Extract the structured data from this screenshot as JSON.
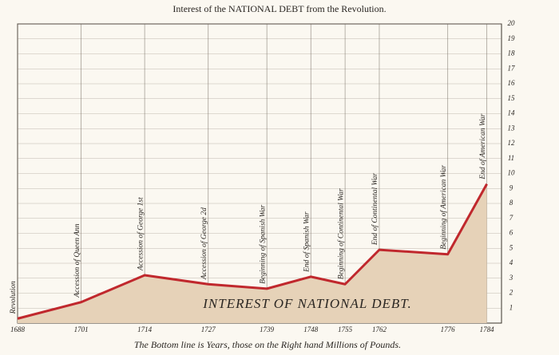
{
  "chart_data": {
    "type": "area",
    "title": "Interest of the NATIONAL DEBT from the Revolution.",
    "footer": "The Bottom line is Years, those on the Right hand Millions of Pounds.",
    "area_label": "INTEREST OF NATIONAL DEBT.",
    "x": [
      1688,
      1701,
      1714,
      1727,
      1739,
      1748,
      1755,
      1762,
      1776,
      1784
    ],
    "values": [
      0.3,
      1.4,
      3.2,
      2.6,
      2.3,
      3.1,
      2.6,
      4.9,
      4.6,
      9.3
    ],
    "events": [
      "Revolution",
      "Accession of Queen Ann",
      "Accession of George 1st",
      "Accession of George 2d",
      "Beginning of Spanish War",
      "End of Spanish War",
      "Beginning of Continental War",
      "End of Continental War",
      "Beginning of American War",
      "End of American War"
    ],
    "xlim": [
      1688,
      1787
    ],
    "xticks": [
      1688,
      1701,
      1714,
      1727,
      1739,
      1748,
      1755,
      1762,
      1776,
      1784
    ],
    "ylim": [
      0,
      20
    ],
    "yticks": [
      1,
      2,
      3,
      4,
      5,
      6,
      7,
      8,
      9,
      10,
      11,
      12,
      13,
      14,
      15,
      16,
      17,
      18,
      19,
      20
    ],
    "y_axis_side": "right",
    "grid": true,
    "line_color": "#c0282d",
    "fill_color": "#e6d2b8"
  }
}
